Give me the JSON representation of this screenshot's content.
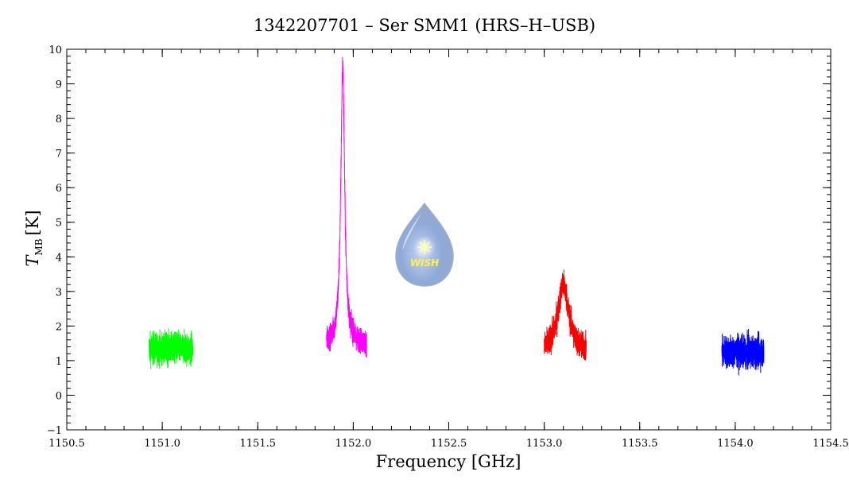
{
  "chart_data": {
    "type": "line",
    "title": "1342207701 – Ser SMM1 (HRS–H–USB)",
    "xlabel": "Frequency [GHz]",
    "ylabel_main": "T",
    "ylabel_sub": "MB",
    "ylabel_unit": "[K]",
    "xlim": [
      1150.5,
      1154.5
    ],
    "ylim": [
      -1,
      10
    ],
    "x_ticks": [
      1150.5,
      1151.0,
      1151.5,
      1152.0,
      1152.5,
      1153.0,
      1153.5,
      1154.0,
      1154.5
    ],
    "x_tick_labels": [
      "1150.5",
      "1151.0",
      "1151.5",
      "1152.0",
      "1152.5",
      "1153.0",
      "1153.5",
      "1154.0",
      "1154.5"
    ],
    "y_ticks": [
      -1,
      0,
      1,
      2,
      3,
      4,
      5,
      6,
      7,
      8,
      9,
      10
    ],
    "y_tick_labels": [
      "−1",
      "0",
      "1",
      "2",
      "3",
      "4",
      "5",
      "6",
      "7",
      "8",
      "9",
      "10"
    ],
    "grid": false,
    "series": [
      {
        "color": "#00ff00",
        "x_range": [
          1150.93,
          1151.16
        ],
        "baseline": 1.35,
        "noise": 0.45,
        "peak": null
      },
      {
        "color": "#ff00ff",
        "x_range": [
          1151.86,
          1152.07
        ],
        "baseline": 1.45,
        "noise": 0.35,
        "peak": {
          "center": 1151.945,
          "height": 8.1,
          "width": 0.012
        }
      },
      {
        "color": "#ff0000",
        "x_range": [
          1153.0,
          1153.22
        ],
        "baseline": 1.2,
        "noise": 0.4,
        "peak": {
          "center": 1153.1,
          "height": 2.0,
          "width": 0.035
        }
      },
      {
        "color": "#0000ff",
        "x_range": [
          1153.93,
          1154.15
        ],
        "baseline": 1.25,
        "noise": 0.45,
        "peak": null
      }
    ]
  },
  "logo": {
    "text": "WISH",
    "icon": "water-drop-star-icon",
    "text_color": "#ffee55"
  }
}
